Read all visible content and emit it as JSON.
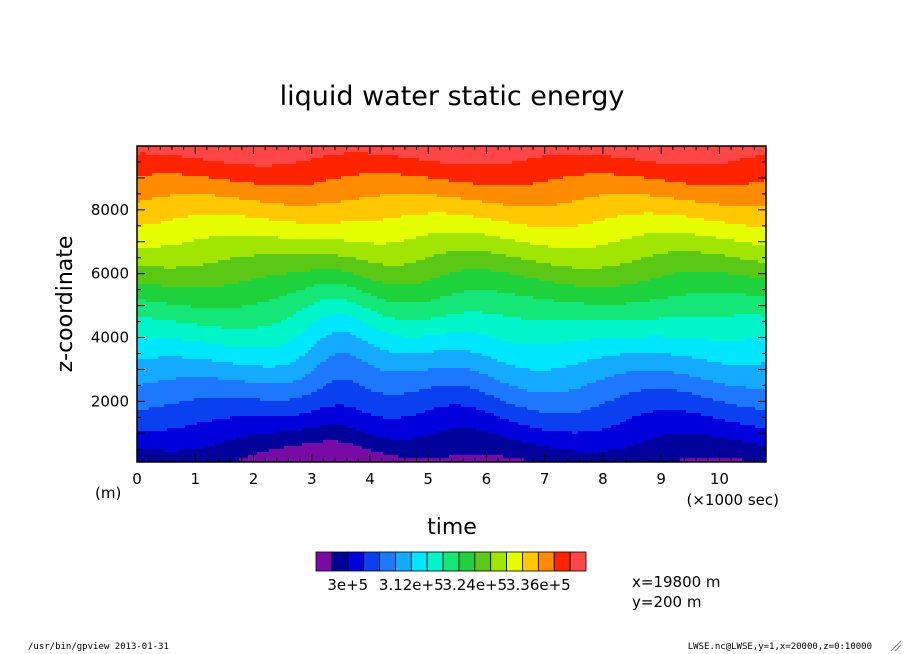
{
  "chart_data": {
    "type": "heatmap",
    "title": "liquid water static energy",
    "xlabel": "time",
    "ylabel": "z-coordinate",
    "x_unit_label": "(×1000 sec)",
    "y_unit_label": "(m)",
    "x_range": [
      0,
      10.8
    ],
    "y_range": [
      100,
      10000
    ],
    "x_ticks": [
      "0",
      "1",
      "2",
      "3",
      "4",
      "5",
      "6",
      "7",
      "8",
      "9",
      "10"
    ],
    "y_ticks": [
      "2000",
      "4000",
      "6000",
      "8000"
    ],
    "x_tick_values": [
      0,
      1,
      2,
      3,
      4,
      5,
      6,
      7,
      8,
      9,
      10
    ],
    "y_tick_values": [
      2000,
      4000,
      6000,
      8000
    ],
    "contour_levels": [
      294000,
      297000,
      300000,
      303000,
      306000,
      309000,
      312000,
      315000,
      318000,
      321000,
      324000,
      327000,
      330000,
      333000,
      336000,
      339000,
      342000
    ],
    "colorbar_labels": [
      "3e+5",
      "3.12e+5",
      "3.24e+5",
      "3.36e+5"
    ],
    "colorbar_colors": [
      "#7a0aa6",
      "#00009b",
      "#0000dc",
      "#0a40f0",
      "#1e78ff",
      "#14aaff",
      "#00e6ff",
      "#00f5c8",
      "#14e678",
      "#1ed23c",
      "#5ac814",
      "#a0e600",
      "#e6ff00",
      "#ffc800",
      "#ff8c00",
      "#ff2300",
      "#ff4646"
    ],
    "annotations": [
      "x=19800 m",
      "y=200 m"
    ]
  },
  "footer": {
    "left": "/usr/bin/gpview  2013-01-31",
    "right": "LWSE.nc@LWSE,y=1,x=20000,z=0:10000"
  }
}
